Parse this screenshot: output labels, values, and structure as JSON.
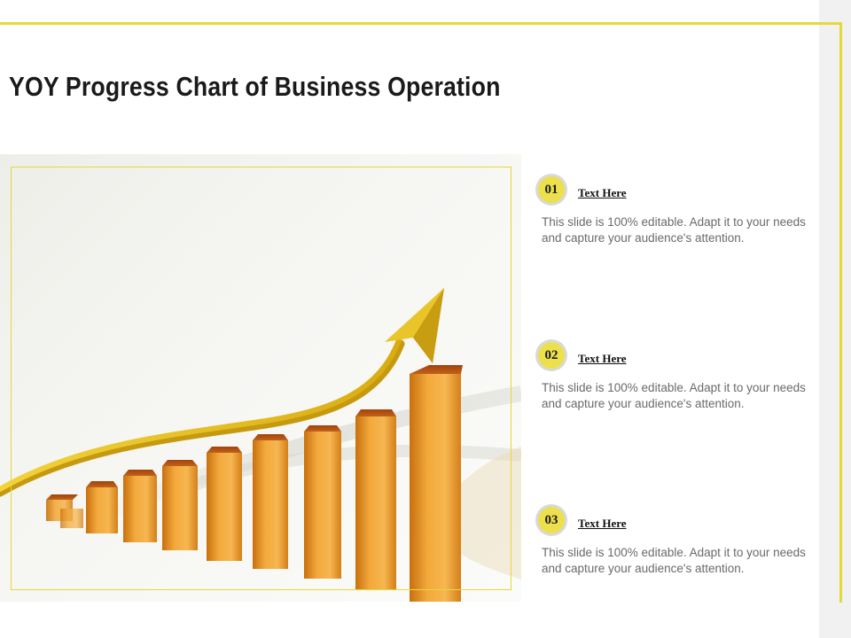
{
  "slide": {
    "title": "YOY Progress Chart of Business Operation",
    "items": [
      {
        "number": "01",
        "heading": "Text Here",
        "description": "This slide is 100% editable. Adapt it to your needs and capture your audience's attention."
      },
      {
        "number": "02",
        "heading": "Text Here",
        "description": "This slide is 100% editable. Adapt it to your needs and capture your audience's attention."
      },
      {
        "number": "03",
        "heading": "Text Here",
        "description": "This slide is 100% editable. Adapt it to your needs and capture your audience's attention."
      }
    ]
  },
  "colors": {
    "accent": "#e5d83a",
    "badge": "#ece04c",
    "bar": "#e8961e",
    "arrow": "#e6c21e"
  }
}
